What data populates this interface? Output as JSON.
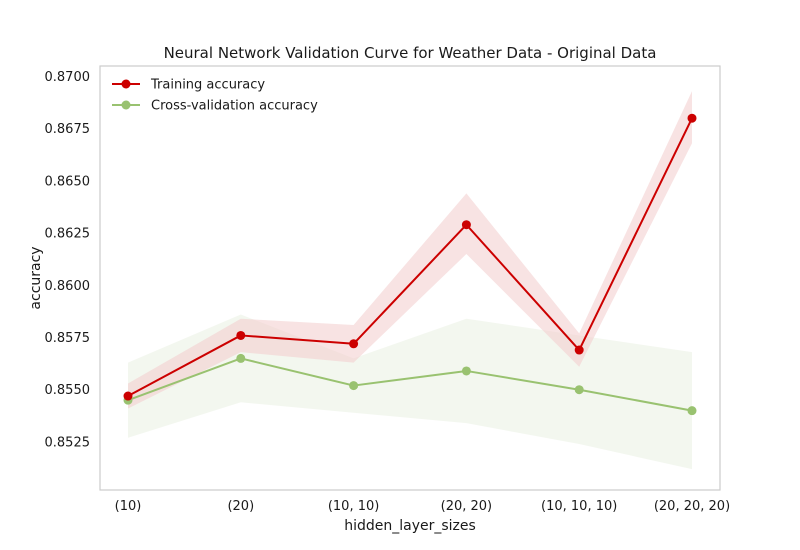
{
  "chart_data": {
    "type": "line",
    "title": "Neural Network Validation Curve for Weather Data - Original Data",
    "xlabel": "hidden_layer_sizes",
    "ylabel": "accuracy",
    "categories": [
      "(10)",
      "(20)",
      "(10, 10)",
      "(20, 20)",
      "(10, 10, 10)",
      "(20, 20, 20)"
    ],
    "ylim": [
      0.8502,
      0.8705
    ],
    "yticks": [
      "0.8525",
      "0.8550",
      "0.8575",
      "0.8600",
      "0.8625",
      "0.8650",
      "0.8675",
      "0.8700"
    ],
    "grid": false,
    "legend_position": "top-left",
    "series": [
      {
        "name": "Training accuracy",
        "color": "#cc0000",
        "band_color": "#f3cccc",
        "values": [
          0.8547,
          0.8576,
          0.8572,
          0.8629,
          0.8569,
          0.868
        ],
        "band_lower": [
          0.8541,
          0.8568,
          0.8563,
          0.8615,
          0.8561,
          0.8668
        ],
        "band_upper": [
          0.8553,
          0.8584,
          0.8581,
          0.8644,
          0.8577,
          0.8693
        ]
      },
      {
        "name": "Cross-validation accuracy",
        "color": "#99c270",
        "band_color": "#e8f0df",
        "values": [
          0.8545,
          0.8565,
          0.8552,
          0.8559,
          0.855,
          0.854
        ],
        "band_lower": [
          0.8527,
          0.8544,
          0.8539,
          0.8534,
          0.8524,
          0.8512
        ],
        "band_upper": [
          0.8563,
          0.8586,
          0.8565,
          0.8584,
          0.8576,
          0.8568
        ]
      }
    ]
  }
}
